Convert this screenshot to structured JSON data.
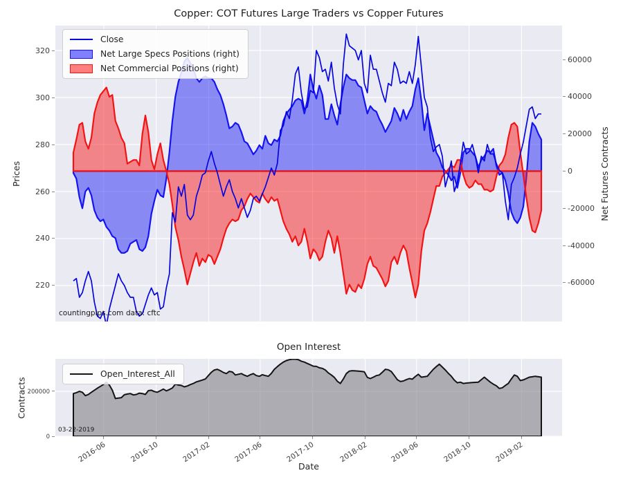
{
  "figure": {
    "background": "#ffffff",
    "plot_background": "#eaeaf2",
    "grid_color": "#ffffff"
  },
  "main_chart": {
    "title": "Copper: COT Futures Large Traders vs Copper Futures",
    "ylabel_left": "Prices",
    "ylabel_right": "Net Futures Contracts",
    "legend": {
      "close": "Close",
      "specs": "Net Large Specs Positions (right)",
      "commercials": "Net Commercial Positions (right)"
    },
    "watermark": "countingpips.com",
    "source_note": "data: cftc",
    "left_ticks": [
      220,
      240,
      260,
      280,
      300,
      320
    ],
    "right_ticks": [
      -60000,
      -40000,
      -20000,
      0,
      20000,
      40000,
      60000
    ],
    "colors": {
      "close_line": "#0505e0",
      "specs_fill": "rgba(40,40,245,0.5)",
      "specs_edge": "#1414f2",
      "commercials_fill": "rgba(248,30,30,0.5)",
      "commercials_edge": "#f21414"
    }
  },
  "oi_chart": {
    "title": "Open Interest",
    "ylabel": "Contracts",
    "xlabel": "Date",
    "legend": {
      "oi": "Open_Interest_All"
    },
    "annotation_date": "03-22-2019",
    "y_ticks": [
      0,
      200000
    ],
    "colors": {
      "line": "#141414",
      "fill": "rgba(120,120,126,0.55)"
    }
  },
  "x_axis": {
    "tick_labels": [
      "2016-06",
      "2016-10",
      "2017-02",
      "2017-06",
      "2017-10",
      "2018-02",
      "2018-06",
      "2018-10",
      "2019-02"
    ],
    "tick_week_index": [
      10.1,
      27.6,
      45.1,
      62.3,
      79.7,
      97.3,
      114.4,
      131.9,
      149.4
    ]
  },
  "chart_data": {
    "type": "line+area",
    "frequency": "weekly",
    "n_points": 157,
    "x_range_weeks": [
      0,
      156
    ],
    "left_axis_range": [
      204.7,
      330.6
    ],
    "right_axis_range": [
      -80900,
      78300
    ],
    "oi_axis_range": [
      0,
      344600
    ],
    "series": [
      {
        "name": "Close",
        "chart": "main",
        "axis": "left",
        "type": "line",
        "values": [
          222,
          223,
          215,
          217,
          222,
          226,
          222,
          213,
          207,
          206,
          209,
          203,
          210,
          215,
          220,
          225,
          222,
          220,
          217,
          215,
          215,
          209,
          207,
          208,
          212,
          216,
          219,
          216,
          217,
          210,
          211,
          219,
          225,
          251,
          247,
          262,
          258,
          263,
          250,
          248,
          250,
          258,
          262,
          267,
          268,
          273,
          277,
          272,
          268,
          263,
          258,
          262,
          265,
          260,
          257,
          253,
          257,
          253,
          249,
          252,
          257,
          258,
          256,
          259,
          262,
          266,
          270,
          267,
          272,
          286,
          288,
          294,
          291,
          299,
          310,
          313,
          302,
          295,
          296,
          303,
          302,
          320,
          317,
          311,
          312,
          307,
          315,
          304,
          297,
          293,
          314,
          327,
          322,
          321,
          320,
          316,
          320,
          306,
          302,
          318,
          312,
          312,
          307,
          302,
          298,
          306,
          305,
          315,
          312,
          306,
          307,
          306,
          311,
          306,
          314,
          326,
          313,
          300,
          296,
          283,
          277,
          279,
          280,
          275,
          262,
          267,
          273,
          260,
          264,
          272,
          281,
          276,
          277,
          280,
          275,
          268,
          275,
          273,
          280,
          276,
          276,
          272,
          269,
          268,
          256,
          248,
          263,
          266,
          270,
          276,
          281,
          288,
          295,
          296,
          291,
          293,
          293
        ]
      },
      {
        "name": "Net Large Specs Positions",
        "chart": "main",
        "axis": "right",
        "type": "area",
        "values": [
          -1000.0,
          -4000.0,
          -14000.0,
          -20000.0,
          -11000.0,
          -9000.0,
          -13000.0,
          -21000.0,
          -25000.0,
          -27000.0,
          -26000.0,
          -30000.0,
          -32000.0,
          -35000.0,
          -36000.0,
          -42000.0,
          -44000.0,
          -44000.0,
          -43000.0,
          -39000.0,
          -38000.0,
          -37000.0,
          -42000.0,
          -43000.0,
          -41000.0,
          -35000.0,
          -23000.0,
          -16000.0,
          -10000.0,
          -13000.0,
          -14000.0,
          -4000.0,
          10000.0,
          27000.0,
          40000.0,
          48000.0,
          53000.0,
          59000.0,
          61000.0,
          58000.0,
          55000.0,
          50000.0,
          48000.0,
          50000.0,
          51000.0,
          50000.0,
          50000.0,
          48000.0,
          44000.0,
          41000.0,
          36000.0,
          30000.0,
          23000.0,
          24000.0,
          26000.0,
          25000.0,
          21000.0,
          16000.0,
          15000.0,
          12000.0,
          9000.0,
          11000.0,
          14000.0,
          12000.0,
          19000.0,
          15000.0,
          14000.0,
          17000.0,
          16000.0,
          19000.0,
          27000.0,
          31000.0,
          33000.0,
          35000.0,
          38000.0,
          39000.0,
          38000.0,
          31000.0,
          38000.0,
          52000.0,
          44000.0,
          39000.0,
          46000.0,
          41000.0,
          28000.0,
          28000.0,
          36000.0,
          30000.0,
          25000.0,
          36000.0,
          45000.0,
          52000.0,
          50000.0,
          49000.0,
          49000.0,
          46000.0,
          45000.0,
          38000.0,
          31000.0,
          35000.0,
          33000.0,
          32000.0,
          28000.0,
          25000.0,
          21000.0,
          24000.0,
          27000.0,
          34000.0,
          31000.0,
          27000.0,
          33000.0,
          28000.0,
          32000.0,
          35000.0,
          44000.0,
          50000.0,
          38000.0,
          22000.0,
          31000.0,
          24000.0,
          17000.0,
          10000.0,
          7000.0,
          2000.0,
          0,
          -2000.0,
          -5000.0,
          -3000.0,
          -9000.0,
          -1000.0,
          10000.0,
          12000.0,
          12000.0,
          10000.0,
          8000.0,
          2000.0,
          6000.0,
          8000.0,
          11000.0,
          10000.0,
          12000.0,
          3000.0,
          -2000.0,
          -1000.0,
          -5000.0,
          -12000.0,
          -22000.0,
          -26000.0,
          -28000.0,
          -25000.0,
          -19000.0,
          -4000.0,
          16000.0,
          26000.0,
          24000.0,
          20000.0,
          17000.0
        ]
      },
      {
        "name": "Net Commercial Positions",
        "chart": "main",
        "axis": "right",
        "type": "area",
        "values": [
          10000.0,
          17000.0,
          25000.0,
          26000.0,
          16000.0,
          12000.0,
          18000.0,
          31000.0,
          37000.0,
          41000.0,
          43000.0,
          45000.0,
          40000.0,
          41000.0,
          27000.0,
          23000.0,
          18000.0,
          15000.0,
          4000.0,
          5000.0,
          6000.0,
          6000.0,
          3000.0,
          20000.0,
          30000.0,
          21000.0,
          6000.0,
          1000.0,
          9000.0,
          15000.0,
          6000.0,
          0,
          -7000.0,
          -18000.0,
          -30000.0,
          -37000.0,
          -46000.0,
          -53000.0,
          -61000.0,
          -55000.0,
          -49000.0,
          -44000.0,
          -51000.0,
          -47000.0,
          -49000.0,
          -45000.0,
          -46000.0,
          -50000.0,
          -46000.0,
          -42000.0,
          -36000.0,
          -31000.0,
          -28000.0,
          -26000.0,
          -27000.0,
          -26000.0,
          -21000.0,
          -19000.0,
          -15000.0,
          -12000.0,
          -14000.0,
          -16000.0,
          -17000.0,
          -12000.0,
          -15000.0,
          -17000.0,
          -14000.0,
          -16000.0,
          -15000.0,
          -21000.0,
          -27000.0,
          -31000.0,
          -34000.0,
          -38000.0,
          -35000.0,
          -40000.0,
          -38000.0,
          -31000.0,
          -38000.0,
          -47000.0,
          -42000.0,
          -44000.0,
          -48000.0,
          -46000.0,
          -38000.0,
          -32000.0,
          -36000.0,
          -44000.0,
          -35000.0,
          -44000.0,
          -55000.0,
          -66000.0,
          -61000.0,
          -64000.0,
          -65000.0,
          -61000.0,
          -63000.0,
          -58000.0,
          -50000.0,
          -46000.0,
          -51000.0,
          -52000.0,
          -55000.0,
          -58000.0,
          -62000.0,
          -59000.0,
          -49000.0,
          -46000.0,
          -50000.0,
          -44000.0,
          -40000.0,
          -43000.0,
          -52000.0,
          -60000.0,
          -68000.0,
          -61000.0,
          -43000.0,
          -32000.0,
          -28000.0,
          -22000.0,
          -15000.0,
          -8000.0,
          -8000.0,
          -3000.0,
          -1000.0,
          1000.0,
          3000.0,
          2000.0,
          6000.0,
          6000.0,
          -2000.0,
          -7000.0,
          -9000.0,
          -8000.0,
          -5000.0,
          -7000.0,
          -7000.0,
          -10000.0,
          -10000.0,
          -11000.0,
          -10000.0,
          -3000.0,
          3000.0,
          5000.0,
          9000.0,
          18000.0,
          25000.0,
          26000.0,
          24000.0,
          10000.0,
          -2000.0,
          -14000.0,
          -25000.0,
          -32000.0,
          -33000.0,
          -28000.0,
          -21000.0
        ]
      },
      {
        "name": "Open_Interest_All",
        "chart": "oi",
        "axis": "left",
        "type": "area",
        "values": [
          190000.0,
          194000.0,
          200000.0,
          196000.0,
          181000.0,
          186000.0,
          196000.0,
          205000.0,
          214000.0,
          222000.0,
          230000.0,
          241000.0,
          228000.0,
          205000.0,
          168000.0,
          170000.0,
          172000.0,
          185000.0,
          188000.0,
          190000.0,
          184000.0,
          186000.0,
          192000.0,
          190000.0,
          186000.0,
          203000.0,
          205000.0,
          199000.0,
          196000.0,
          203000.0,
          210000.0,
          202000.0,
          208000.0,
          215000.0,
          232000.0,
          228000.0,
          226000.0,
          220000.0,
          224000.0,
          230000.0,
          235000.0,
          242000.0,
          246000.0,
          250000.0,
          255000.0,
          270000.0,
          285000.0,
          295000.0,
          298000.0,
          292000.0,
          284000.0,
          279000.0,
          289000.0,
          286000.0,
          273000.0,
          276000.0,
          279000.0,
          272000.0,
          267000.0,
          274000.0,
          279000.0,
          270000.0,
          267000.0,
          274000.0,
          270000.0,
          267000.0,
          280000.0,
          298000.0,
          310000.0,
          321000.0,
          330000.0,
          337000.0,
          341000.0,
          343000.0,
          343000.0,
          341000.0,
          334000.0,
          330000.0,
          324000.0,
          318000.0,
          312000.0,
          311000.0,
          305000.0,
          302000.0,
          295000.0,
          282000.0,
          273000.0,
          262000.0,
          245000.0,
          235000.0,
          255000.0,
          279000.0,
          290000.0,
          292000.0,
          291000.0,
          290000.0,
          289000.0,
          287000.0,
          262000.0,
          257000.0,
          263000.0,
          270000.0,
          273000.0,
          285000.0,
          298000.0,
          296000.0,
          288000.0,
          270000.0,
          252000.0,
          244000.0,
          246000.0,
          252000.0,
          257000.0,
          254000.0,
          266000.0,
          276000.0,
          263000.0,
          265000.0,
          267000.0,
          283000.0,
          298000.0,
          310000.0,
          321000.0,
          308000.0,
          295000.0,
          280000.0,
          267000.0,
          250000.0,
          238000.0,
          241000.0,
          235000.0,
          237000.0,
          238000.0,
          239000.0,
          240000.0,
          241000.0,
          252000.0,
          263000.0,
          252000.0,
          241000.0,
          232000.0,
          225000.0,
          213000.0,
          216000.0,
          226000.0,
          235000.0,
          255000.0,
          273000.0,
          267000.0,
          248000.0,
          251000.0,
          257000.0,
          263000.0,
          265000.0,
          267000.0,
          265000.0,
          263000.0
        ]
      }
    ]
  }
}
